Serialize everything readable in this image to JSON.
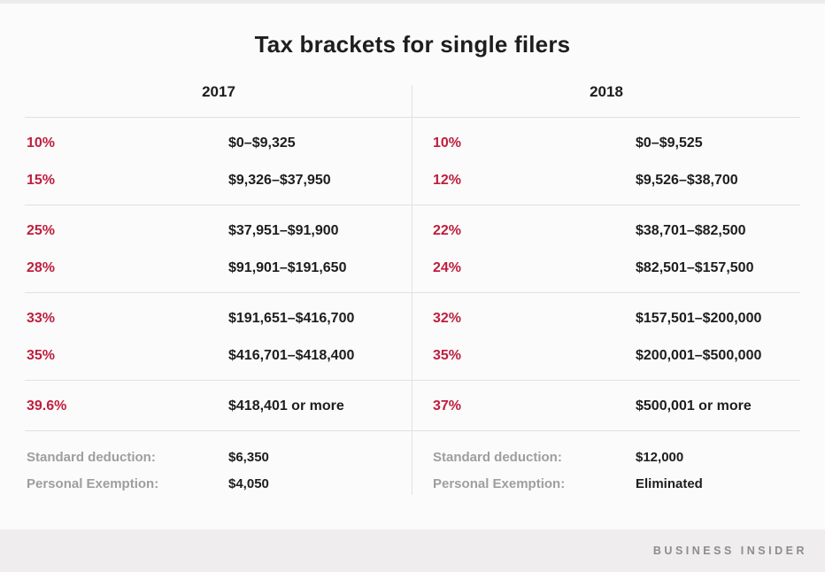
{
  "title": "Tax brackets for single filers",
  "colors": {
    "rate_red": "#be1e3d",
    "value_black": "#1d1d1d",
    "label_gray": "#9e9e9e",
    "footer_gray": "#8d8d8d",
    "footer_bg": "#efedee",
    "line": "#e2e0e1",
    "background": "#fbfbfb"
  },
  "chart_data": {
    "type": "table",
    "title": "Tax brackets for single filers",
    "columns": [
      "2017 rate",
      "2017 income range",
      "2018 rate",
      "2018 income range"
    ],
    "rows": [
      [
        "10%",
        "$0–$9,325",
        "10%",
        "$0–$9,525"
      ],
      [
        "15%",
        "$9,326–$37,950",
        "12%",
        "$9,526–$38,700"
      ],
      [
        "25%",
        "$37,951–$91,900",
        "22%",
        "$38,701–$82,500"
      ],
      [
        "28%",
        "$91,901–$191,650",
        "24%",
        "$82,501–$157,500"
      ],
      [
        "33%",
        "$191,651–$416,700",
        "32%",
        "$157,501–$200,000"
      ],
      [
        "35%",
        "$416,701–$418,400",
        "35%",
        "$200,001–$500,000"
      ],
      [
        "39.6%",
        "$418,401 or more",
        "37%",
        "$500,001 or more"
      ]
    ],
    "footnotes": {
      "2017": {
        "standard_deduction": "$6,350",
        "personal_exemption": "$4,050"
      },
      "2018": {
        "standard_deduction": "$12,000",
        "personal_exemption": "Eliminated"
      }
    }
  },
  "columns": [
    {
      "year": "2017",
      "groups": [
        [
          {
            "rate": "10%",
            "range": "$0–$9,325"
          },
          {
            "rate": "15%",
            "range": "$9,326–$37,950"
          }
        ],
        [
          {
            "rate": "25%",
            "range": "$37,951–$91,900"
          },
          {
            "rate": "28%",
            "range": "$91,901–$191,650"
          }
        ],
        [
          {
            "rate": "33%",
            "range": "$191,651–$416,700"
          },
          {
            "rate": "35%",
            "range": "$416,701–$418,400"
          }
        ],
        [
          {
            "rate": "39.6%",
            "range": "$418,401 or more"
          }
        ]
      ],
      "standard_deduction_label": "Standard deduction:",
      "standard_deduction_value": "$6,350",
      "personal_exemption_label": "Personal Exemption:",
      "personal_exemption_value": "$4,050"
    },
    {
      "year": "2018",
      "groups": [
        [
          {
            "rate": "10%",
            "range": "$0–$9,525"
          },
          {
            "rate": "12%",
            "range": "$9,526–$38,700"
          }
        ],
        [
          {
            "rate": "22%",
            "range": "$38,701–$82,500"
          },
          {
            "rate": "24%",
            "range": "$82,501–$157,500"
          }
        ],
        [
          {
            "rate": "32%",
            "range": "$157,501–$200,000"
          },
          {
            "rate": "35%",
            "range": "$200,001–$500,000"
          }
        ],
        [
          {
            "rate": "37%",
            "range": "$500,001 or more"
          }
        ]
      ],
      "standard_deduction_label": "Standard deduction:",
      "standard_deduction_value": "$12,000",
      "personal_exemption_label": "Personal Exemption:",
      "personal_exemption_value": "Eliminated"
    }
  ],
  "footer": {
    "brand": "BUSINESS INSIDER"
  }
}
